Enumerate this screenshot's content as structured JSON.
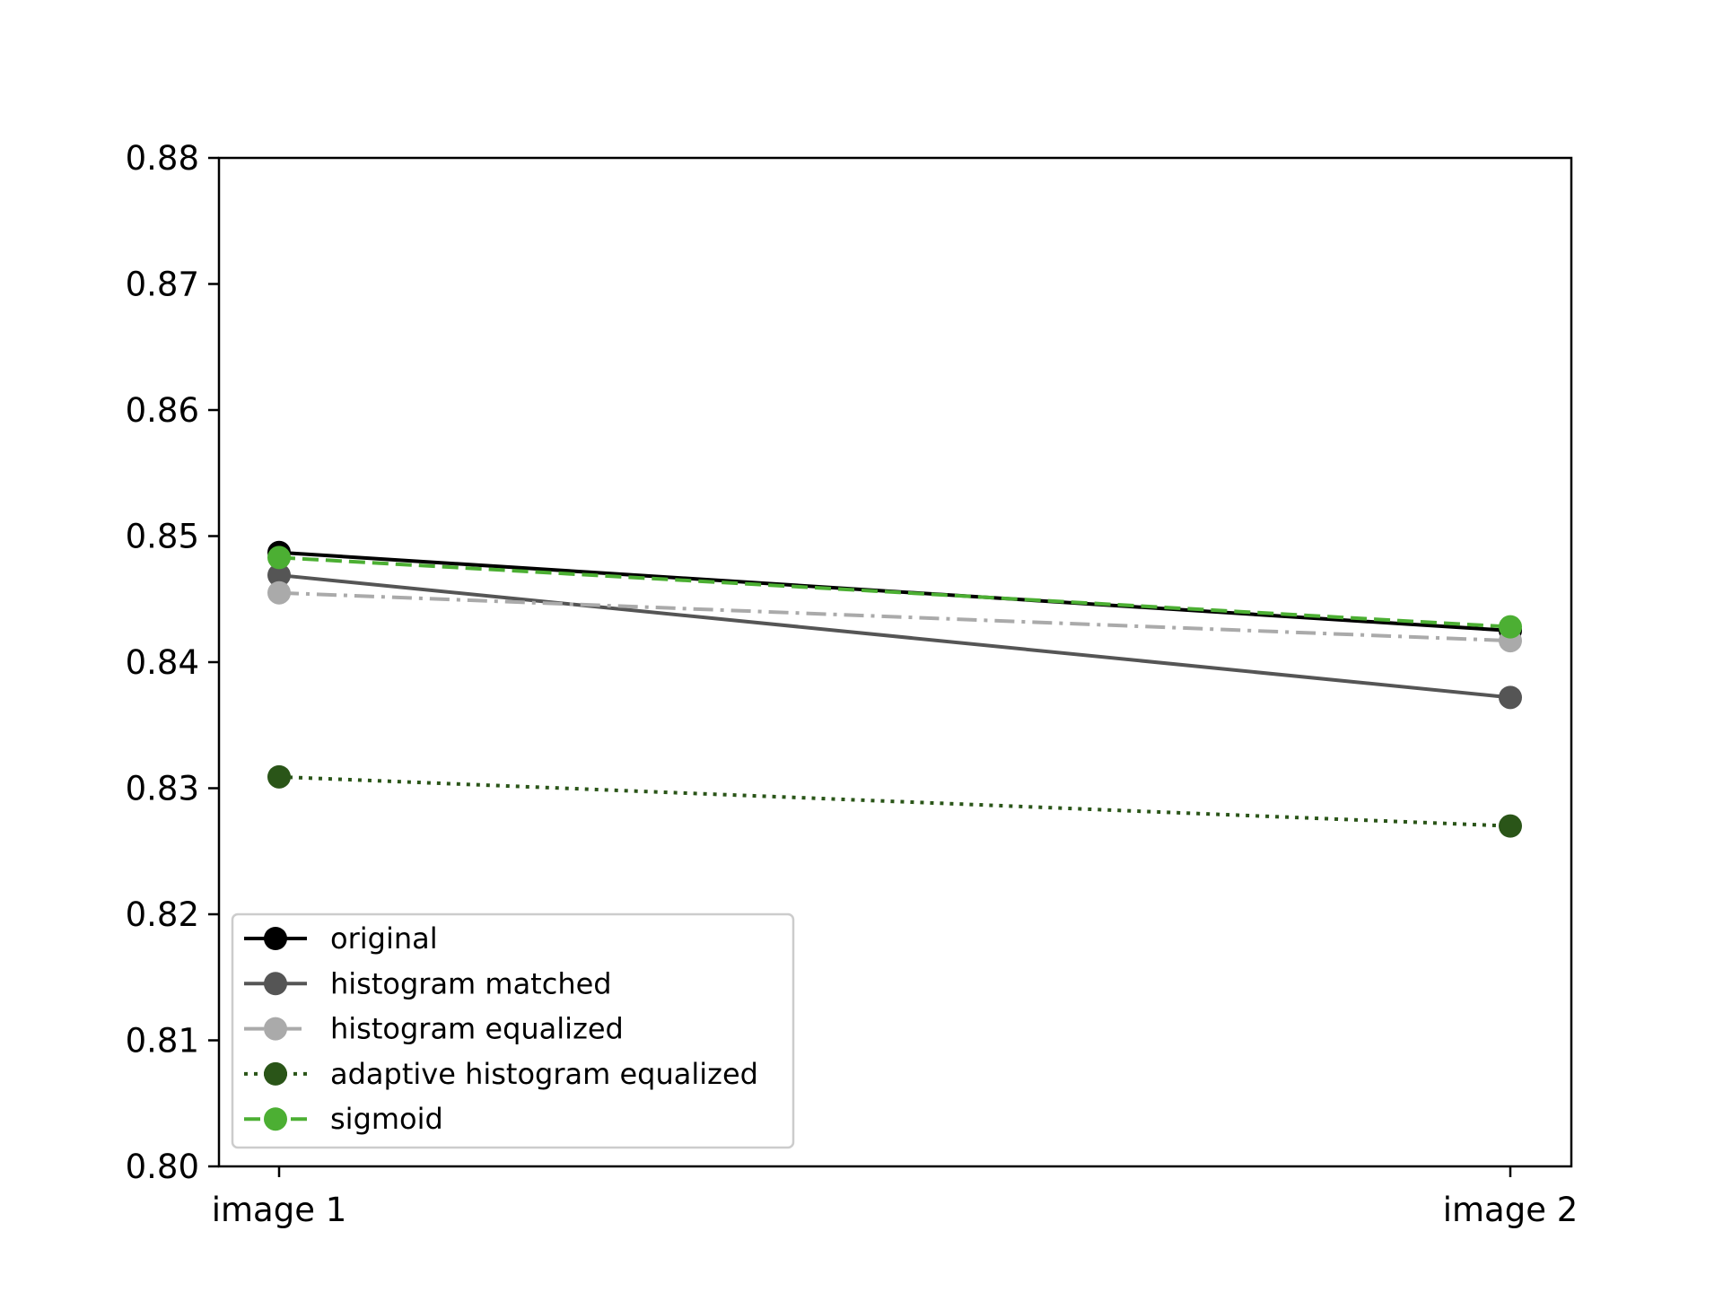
{
  "chart_data": {
    "type": "line",
    "title": "",
    "xlabel": "",
    "ylabel": "",
    "categories": [
      "image 1",
      "image 2"
    ],
    "ylim": [
      0.8,
      0.88
    ],
    "yticks": [
      "0.80",
      "0.81",
      "0.82",
      "0.83",
      "0.84",
      "0.85",
      "0.86",
      "0.87",
      "0.88"
    ],
    "grid": false,
    "legend_position": "bottom-left",
    "series": [
      {
        "name": "original",
        "values": [
          0.8487,
          0.8425
        ],
        "color": "#000000",
        "dash": "solid"
      },
      {
        "name": "histogram matched",
        "values": [
          0.8469,
          0.8372
        ],
        "color": "#555555",
        "dash": "solid"
      },
      {
        "name": "histogram equalized",
        "values": [
          0.8455,
          0.8417
        ],
        "color": "#aaaaaa",
        "dash": "dashdot"
      },
      {
        "name": "adaptive histogram equalized",
        "values": [
          0.8309,
          0.827
        ],
        "color": "#2a5518",
        "dash": "dotted"
      },
      {
        "name": "sigmoid",
        "values": [
          0.8483,
          0.8428
        ],
        "color": "#4caf33",
        "dash": "dashed"
      }
    ]
  }
}
